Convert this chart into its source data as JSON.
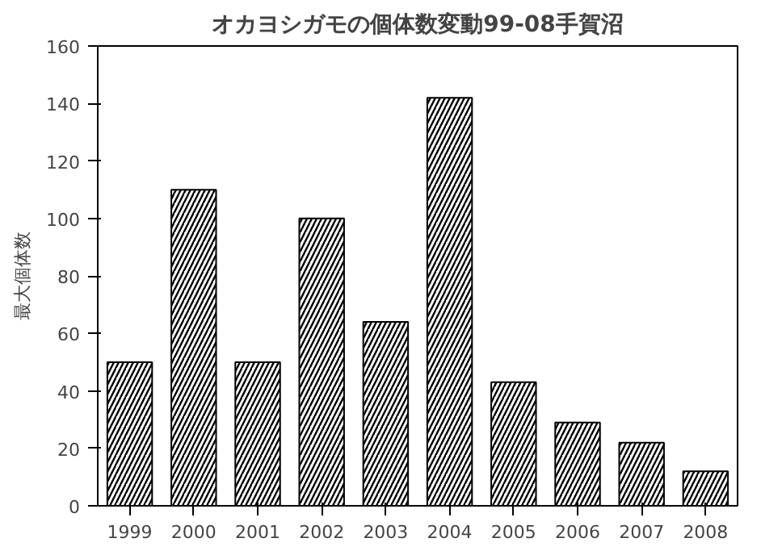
{
  "chart_data": {
    "type": "bar",
    "title": "オカヨシガモの個体数変動99-08手賀沼",
    "ylabel": "最大個体数",
    "categories": [
      "1999",
      "2000",
      "2001",
      "2002",
      "2003",
      "2004",
      "2005",
      "2006",
      "2007",
      "2008"
    ],
    "values": [
      50,
      110,
      50,
      100,
      64,
      142,
      43,
      29,
      22,
      12
    ],
    "color": "#000000",
    "ylim": [
      0,
      160
    ],
    "yticks": [
      0,
      20,
      40,
      60,
      80,
      100,
      120,
      140,
      160
    ],
    "grid": false
  }
}
